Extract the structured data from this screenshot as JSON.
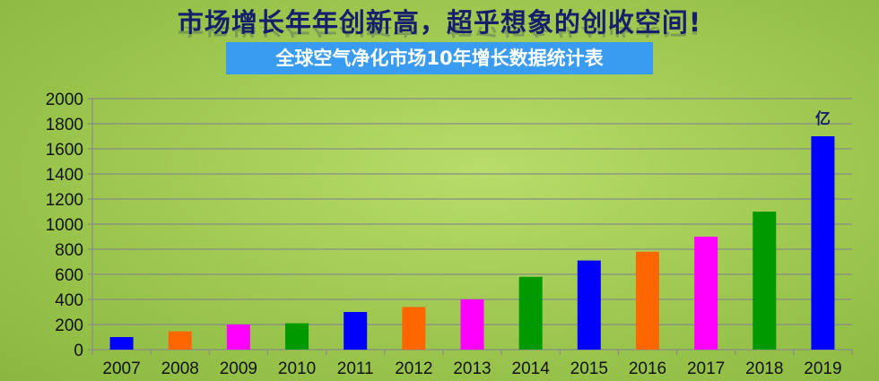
{
  "header": {
    "headline": "市场增长年年创新高，超乎想象的创收空间!",
    "subtitle": "全球空气净化市场10年增长数据统计表"
  },
  "chart_data": {
    "type": "bar",
    "title": "全球空气净化市场10年增长数据统计表",
    "unit_label": "亿",
    "categories": [
      "2007",
      "2008",
      "2009",
      "2010",
      "2011",
      "2012",
      "2013",
      "2014",
      "2015",
      "2016",
      "2017",
      "2018",
      "2019"
    ],
    "values": [
      100,
      145,
      200,
      210,
      300,
      340,
      400,
      580,
      710,
      780,
      900,
      1100,
      1700
    ],
    "colors": [
      "#0000ff",
      "#ff6600",
      "#ff00ff",
      "#009900",
      "#0000ff",
      "#ff6600",
      "#ff00ff",
      "#009900",
      "#0000ff",
      "#ff6600",
      "#ff00ff",
      "#009900",
      "#0000ff"
    ],
    "ylim": [
      0,
      2000
    ],
    "yticks": [
      0,
      200,
      400,
      600,
      800,
      1000,
      1200,
      1400,
      1600,
      1800,
      2000
    ],
    "grid": true
  }
}
